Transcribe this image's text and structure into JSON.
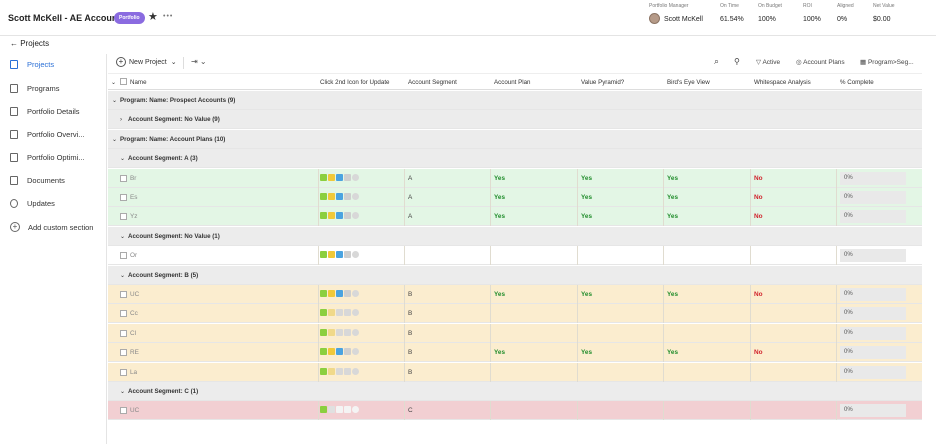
{
  "header": {
    "title": "Scott McKell - AE Accounts",
    "badge": "Portfolio",
    "more": "•••",
    "stats": [
      {
        "label": "Portfolio Manager",
        "value": "Scott McKell"
      },
      {
        "label": "On Time",
        "value": "61.54%"
      },
      {
        "label": "On Budget",
        "value": "100%"
      },
      {
        "label": "ROI",
        "value": "100%"
      },
      {
        "label": "Aligned",
        "value": "0%"
      },
      {
        "label": "Net Value",
        "value": "$0.00"
      }
    ]
  },
  "breadcrumb": "← Projects",
  "sidebar": {
    "items": [
      {
        "label": "Projects",
        "icon": "projects-icon"
      },
      {
        "label": "Programs",
        "icon": "programs-icon"
      },
      {
        "label": "Portfolio Details",
        "icon": "details-icon"
      },
      {
        "label": "Portfolio Overvi...",
        "icon": "overview-icon"
      },
      {
        "label": "Portfolio Optimi...",
        "icon": "optimizer-icon"
      },
      {
        "label": "Documents",
        "icon": "documents-icon"
      },
      {
        "label": "Updates",
        "icon": "updates-icon"
      }
    ],
    "add_section": "Add custom section"
  },
  "toolbar": {
    "new_project": "New Project",
    "export": "⇥ ⌄",
    "active": "Active",
    "account_plans": "Account Plans",
    "grouping": "Program>Seg..."
  },
  "columns": {
    "name": "Name",
    "icon_col": "Click 2nd Icon for Update",
    "segment": "Account Segment",
    "plan": "Account Plan",
    "pyramid": "Value Pyramid?",
    "birds": "Bird's Eye View",
    "whitespace": "Whitespace Analysis",
    "complete": "% Complete"
  },
  "rows": [
    {
      "type": "group",
      "indent": 0,
      "label": "Program: Name: Prospect Accounts (9)",
      "toggle": "⌄"
    },
    {
      "type": "group",
      "indent": 1,
      "label": "Account Segment: No Value (9)",
      "toggle": "›"
    },
    {
      "type": "group",
      "indent": 0,
      "label": "Program: Name: Account Plans (10)",
      "toggle": "⌄"
    },
    {
      "type": "group",
      "indent": 1,
      "label": "Account Segment: A (3)",
      "toggle": "⌄"
    },
    {
      "type": "data",
      "color": "green",
      "name": "Br",
      "segment": "A",
      "plan": "Yes",
      "pyramid": "Yes",
      "birds": "Yes",
      "whitespace": "No",
      "complete": "0%",
      "icons": "full"
    },
    {
      "type": "data",
      "color": "green",
      "name": "Es",
      "segment": "A",
      "plan": "Yes",
      "pyramid": "Yes",
      "birds": "Yes",
      "whitespace": "No",
      "complete": "0%",
      "icons": "full"
    },
    {
      "type": "data",
      "color": "green",
      "name": "Yz",
      "segment": "A",
      "plan": "Yes",
      "pyramid": "Yes",
      "birds": "Yes",
      "whitespace": "No",
      "complete": "0%",
      "icons": "full"
    },
    {
      "type": "group",
      "indent": 1,
      "label": "Account Segment: No Value (1)",
      "toggle": "⌄"
    },
    {
      "type": "data",
      "color": "white",
      "name": "Or",
      "segment": "",
      "plan": "",
      "pyramid": "",
      "birds": "",
      "whitespace": "",
      "complete": "0%",
      "icons": "full"
    },
    {
      "type": "group",
      "indent": 1,
      "label": "Account Segment: B (5)",
      "toggle": "⌄"
    },
    {
      "type": "data",
      "color": "yellow",
      "name": "UC",
      "segment": "B",
      "plan": "Yes",
      "pyramid": "Yes",
      "birds": "Yes",
      "whitespace": "No",
      "complete": "0%",
      "icons": "full"
    },
    {
      "type": "data",
      "color": "yellow",
      "name": "Cc",
      "segment": "B",
      "plan": "",
      "pyramid": "",
      "birds": "",
      "whitespace": "",
      "complete": "0%",
      "icons": "partial"
    },
    {
      "type": "data",
      "color": "yellow",
      "name": "Cl",
      "segment": "B",
      "plan": "",
      "pyramid": "",
      "birds": "",
      "whitespace": "",
      "complete": "0%",
      "icons": "partial"
    },
    {
      "type": "data",
      "color": "yellow",
      "name": "RE",
      "segment": "B",
      "plan": "Yes",
      "pyramid": "Yes",
      "birds": "Yes",
      "whitespace": "No",
      "complete": "0%",
      "icons": "full"
    },
    {
      "type": "data",
      "color": "yellow",
      "name": "La",
      "segment": "B",
      "plan": "",
      "pyramid": "",
      "birds": "",
      "whitespace": "",
      "complete": "0%",
      "icons": "partial"
    },
    {
      "type": "group",
      "indent": 1,
      "label": "Account Segment: C (1)",
      "toggle": "⌄"
    },
    {
      "type": "data",
      "color": "red",
      "name": "UC",
      "segment": "C",
      "plan": "",
      "pyramid": "",
      "birds": "",
      "whitespace": "",
      "complete": "0%",
      "icons": "min"
    }
  ]
}
